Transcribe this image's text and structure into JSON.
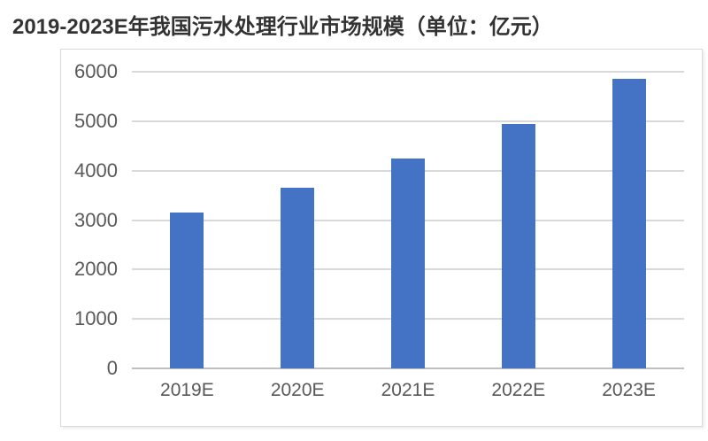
{
  "chart_data": {
    "type": "bar",
    "title": "2019-2023E年我国污水处理行业市场规模（单位：亿元）",
    "unit": "亿元",
    "categories": [
      "2019E",
      "2020E",
      "2021E",
      "2022E",
      "2023E"
    ],
    "values": [
      3150,
      3650,
      4250,
      4950,
      5850
    ],
    "xlabel": "",
    "ylabel": "",
    "ylim": [
      0,
      6000
    ],
    "yticks": [
      0,
      1000,
      2000,
      3000,
      4000,
      5000,
      6000
    ],
    "grid": true,
    "legend": false,
    "bar_color": "#4472c4",
    "gridline_color": "#d9d9d9",
    "axis_line_color": "#bfbfbf",
    "tick_label_color": "#595959",
    "title_color": "#333333",
    "plot_border_color": "#d9d9d9"
  }
}
